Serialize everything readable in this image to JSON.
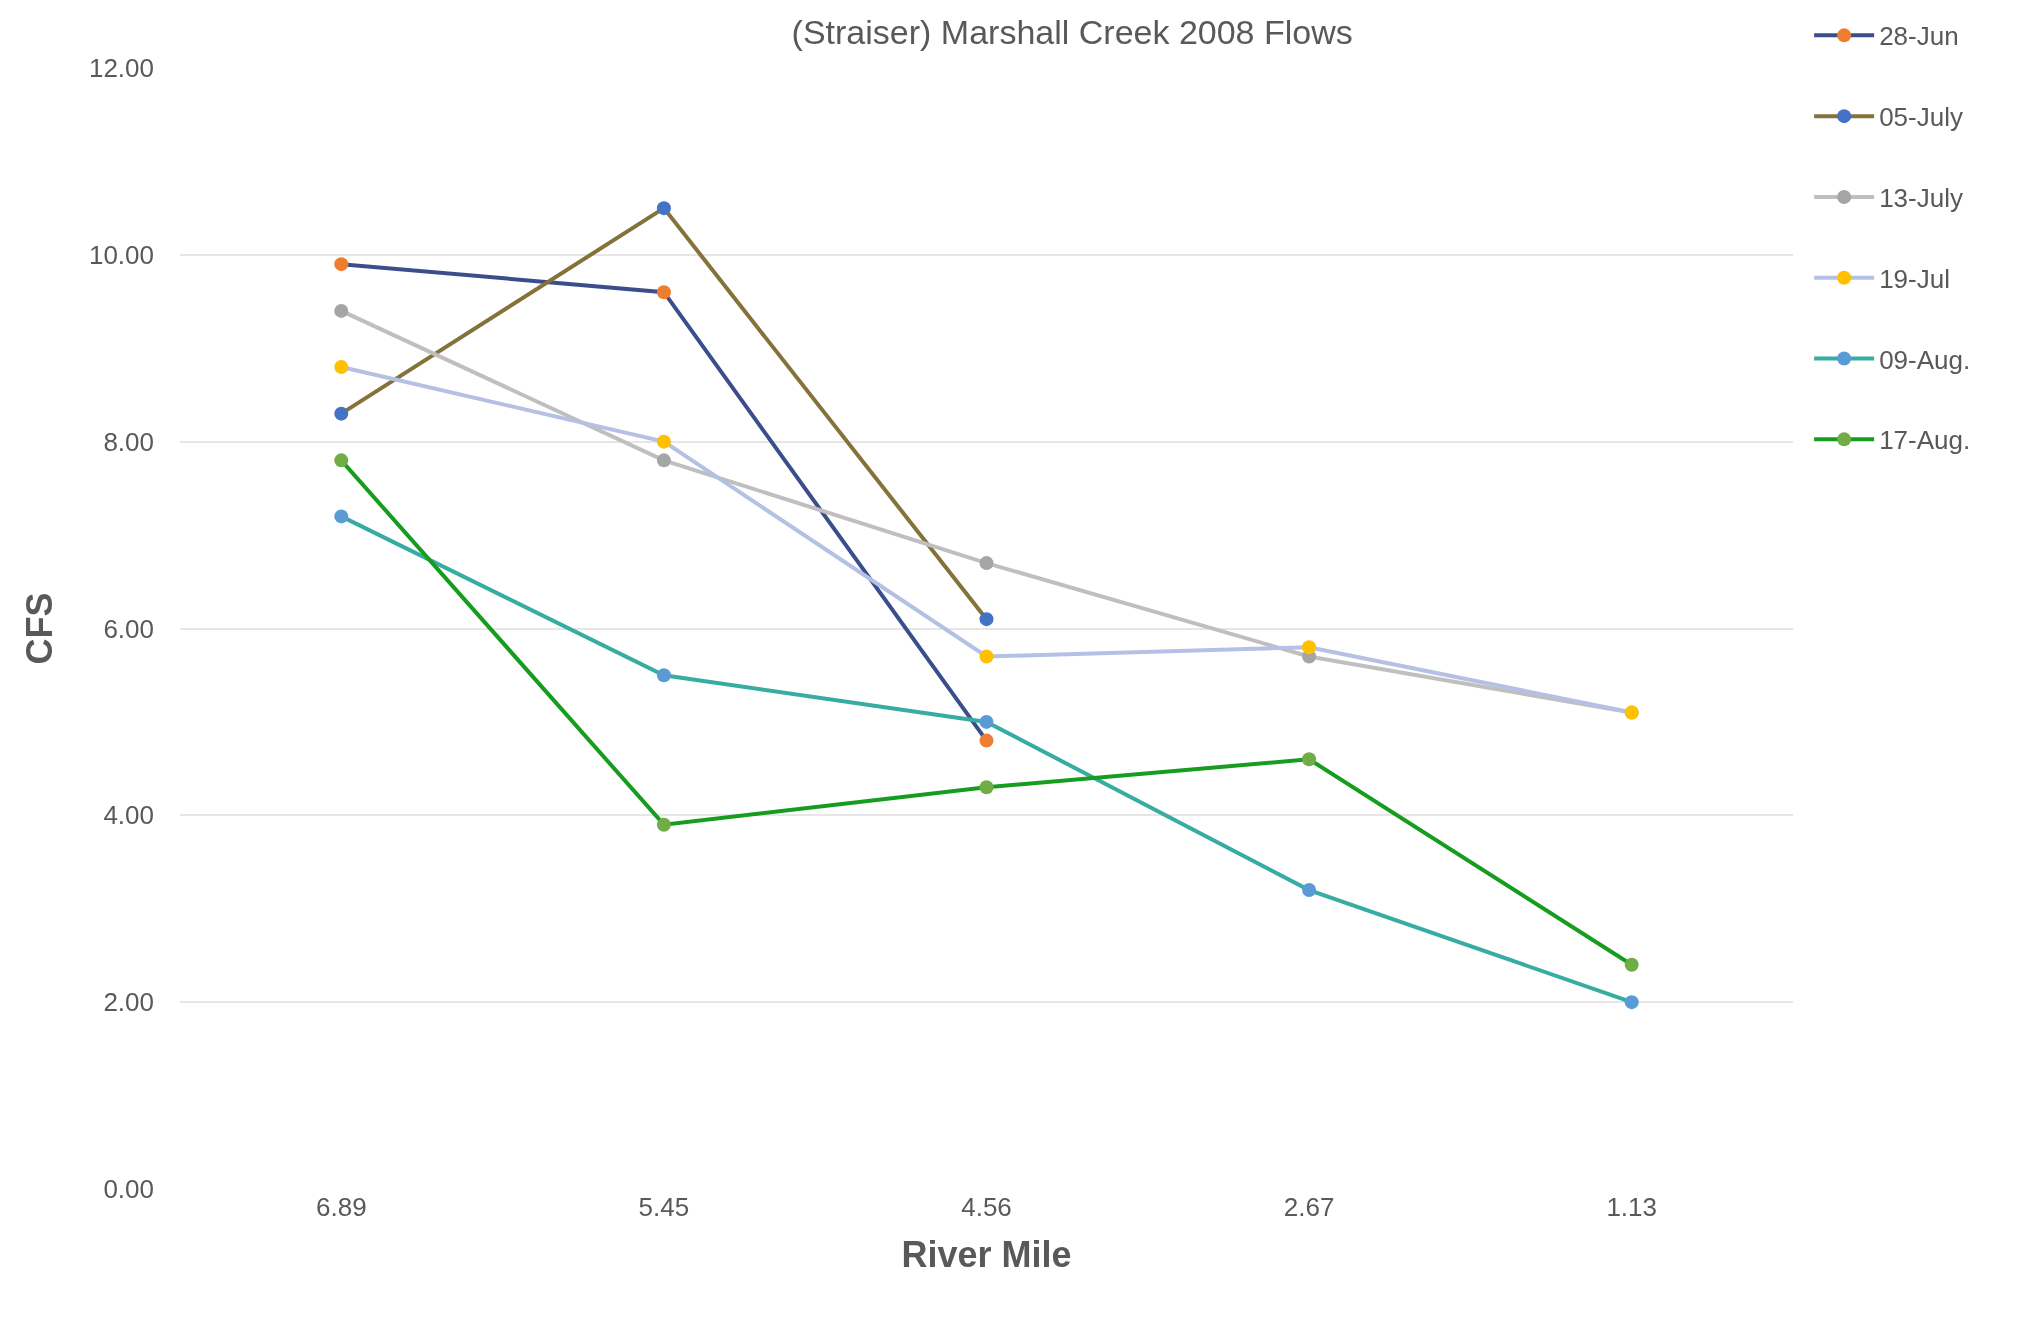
{
  "chart_data": {
    "type": "line",
    "title": "(Straiser) Marshall Creek 2008 Flows",
    "xlabel": "River Mile",
    "ylabel": "CFS",
    "categories": [
      "6.89",
      "5.45",
      "4.56",
      "2.67",
      "1.13"
    ],
    "ylim": [
      0,
      12
    ],
    "yticks": [
      {
        "value": 0,
        "label": "0.00"
      },
      {
        "value": 2,
        "label": "2.00"
      },
      {
        "value": 4,
        "label": "4.00"
      },
      {
        "value": 6,
        "label": "6.00"
      },
      {
        "value": 8,
        "label": "8.00"
      },
      {
        "value": 10,
        "label": "10.00"
      },
      {
        "value": 12,
        "label": "12.00"
      }
    ],
    "grid": "y",
    "legend": "top right",
    "marker": "circle",
    "line_style": "solid",
    "series": [
      {
        "name": "28-Jun",
        "color": "#3b4e8c",
        "colors": [
          "#ed7d31",
          "#ed7d31",
          "#ed7d31",
          "#ed7d31",
          "#ed7d31"
        ],
        "values": [
          9.9,
          9.6,
          4.8,
          null,
          null
        ]
      },
      {
        "name": "05-July",
        "color": "#85723a",
        "colors": [
          "#4472c4",
          "#4472c4",
          "#4472c4",
          "#4472c4",
          "#4472c4"
        ],
        "values": [
          8.3,
          10.5,
          6.1,
          null,
          null
        ]
      },
      {
        "name": "13-July",
        "color": "#bfbfbf",
        "colors": [
          "#a5a5a5",
          "#a5a5a5",
          "#a5a5a5",
          "#a5a5a5",
          "#a5a5a5"
        ],
        "values": [
          9.4,
          7.8,
          6.7,
          5.7,
          5.1
        ]
      },
      {
        "name": "19-Jul",
        "color": "#b4c0e4",
        "colors": [
          "#ffc000",
          "#ffc000",
          "#ffc000",
          "#ffc000",
          "#ffc000"
        ],
        "values": [
          8.8,
          8.0,
          5.7,
          5.8,
          5.1
        ]
      },
      {
        "name": "09-Aug.",
        "color": "#36aca3",
        "colors": [
          "#5b9bd5",
          "#5b9bd5",
          "#5b9bd5",
          "#5b9bd5",
          "#5b9bd5"
        ],
        "values": [
          7.2,
          5.5,
          5.0,
          3.2,
          2.0
        ]
      },
      {
        "name": "17-Aug.",
        "color": "#169c1e",
        "colors": [
          "#70ad47",
          "#70ad47",
          "#70ad47",
          "#70ad47",
          "#70ad47"
        ],
        "values": [
          7.8,
          3.9,
          4.3,
          4.6,
          2.4
        ]
      }
    ]
  }
}
